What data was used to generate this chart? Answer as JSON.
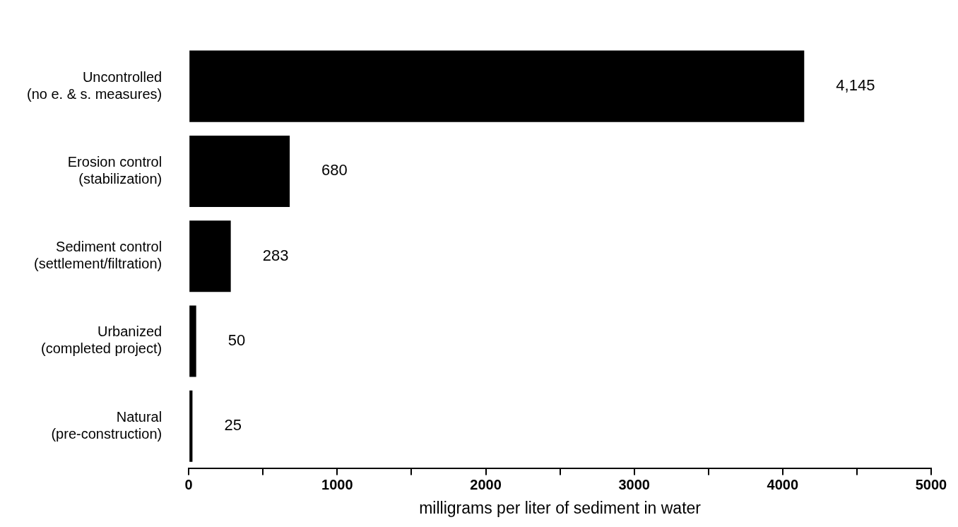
{
  "chart_data": {
    "type": "bar",
    "orientation": "horizontal",
    "categories": [
      "Uncontrolled\n(no e. & s. measures)",
      "Erosion control\n(stabilization)",
      "Sediment control\n(settlement/filtration)",
      "Urbanized\n(completed project)",
      "Natural\n(pre-construction)"
    ],
    "values": [
      4145,
      680,
      283,
      50,
      25
    ],
    "value_labels": [
      "4,145",
      "680",
      "283",
      "50",
      "25"
    ],
    "color": "#000000",
    "xlabel": "milligrams per liter of sediment in water",
    "xlim": [
      0,
      5000
    ],
    "xticks": [
      0,
      {
        "value": 500,
        "label": null
      },
      1000,
      {
        "value": 1500,
        "label": null
      },
      2000,
      {
        "value": 2500,
        "label": null
      },
      3000,
      {
        "value": 3500,
        "label": null
      },
      4000,
      {
        "value": 4500,
        "label": null
      },
      5000
    ],
    "grid": false,
    "legend": false
  }
}
